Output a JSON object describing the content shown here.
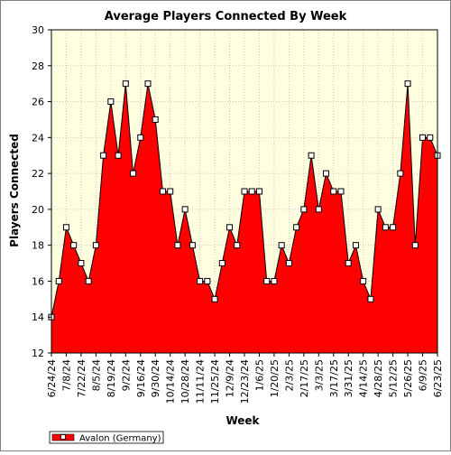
{
  "chart_data": {
    "type": "area",
    "title": "Average Players Connected By Week",
    "xlabel": "Week",
    "ylabel": "Players Connected",
    "ylim": [
      12,
      30
    ],
    "yticks": [
      12,
      14,
      16,
      18,
      20,
      22,
      24,
      26,
      28,
      30
    ],
    "grid": true,
    "legend_position": "bottom-left",
    "colors": {
      "fill": "#ff0000",
      "line": "#000000",
      "plot_bg": "#ffffe0",
      "grid": "#c8c8c8",
      "marker_fill": "#ffffff"
    },
    "x_tick_labels": [
      "6/24/24",
      "7/8/24",
      "7/22/24",
      "8/5/24",
      "8/19/24",
      "9/2/24",
      "9/16/24",
      "9/30/24",
      "10/14/24",
      "10/28/24",
      "11/11/24",
      "11/25/24",
      "12/9/24",
      "12/23/24",
      "1/6/25",
      "1/20/25",
      "2/3/25",
      "2/17/25",
      "3/3/25",
      "3/17/25",
      "3/31/25",
      "4/14/25",
      "4/28/25",
      "5/12/25",
      "5/26/25",
      "6/9/25",
      "6/23/25"
    ],
    "series": [
      {
        "name": "Avalon (Germany)",
        "values": [
          14,
          16,
          19,
          18,
          17,
          16,
          18,
          23,
          26,
          23,
          27,
          22,
          24,
          27,
          25,
          21,
          21,
          18,
          20,
          18,
          16,
          16,
          15,
          17,
          19,
          18,
          21,
          21,
          21,
          16,
          16,
          18,
          17,
          19,
          20,
          23,
          20,
          22,
          21,
          21,
          17,
          18,
          16,
          15,
          20,
          19,
          19,
          22,
          27,
          18,
          24,
          24,
          23
        ]
      }
    ]
  }
}
